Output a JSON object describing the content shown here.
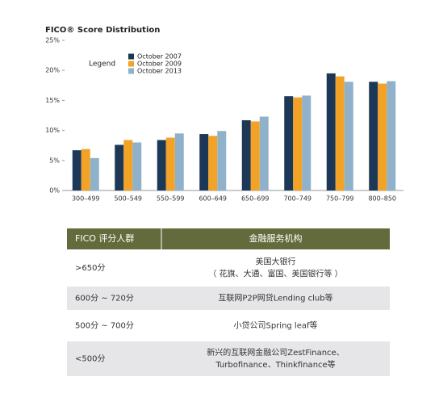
{
  "chart_data": {
    "type": "bar",
    "title": "FICO® Score Distribution",
    "legend_title": "Legend",
    "legend_position": "upper left",
    "categories": [
      "300–499",
      "500–549",
      "550–599",
      "600–649",
      "650–699",
      "700–749",
      "750–799",
      "800–850"
    ],
    "series": [
      {
        "name": "October 2007",
        "color": "#1d3857",
        "values": [
          6.7,
          7.6,
          8.4,
          9.4,
          11.7,
          15.7,
          19.5,
          18.1
        ]
      },
      {
        "name": "October 2009",
        "color": "#f2a227",
        "values": [
          6.9,
          8.4,
          8.8,
          9.1,
          11.5,
          15.5,
          19.0,
          17.8
        ]
      },
      {
        "name": "October 2013",
        "color": "#8fb1c9",
        "values": [
          5.4,
          8.0,
          9.5,
          9.9,
          12.3,
          15.8,
          18.1,
          18.2
        ]
      }
    ],
    "ylim": [
      0,
      25
    ],
    "yticks": [
      {
        "value": 0,
        "label": "0%"
      },
      {
        "value": 5,
        "label": "5%"
      },
      {
        "value": 10,
        "label": "10%"
      },
      {
        "value": 15,
        "label": "15%"
      },
      {
        "value": 20,
        "label": "20%"
      },
      {
        "value": 25,
        "label": "25%"
      }
    ]
  },
  "table": {
    "header": [
      "FICO 评分人群",
      "金融服务机构"
    ],
    "rows": [
      [
        ">650分",
        [
          "美国大银行",
          "（ 花旗、大通、富国、美国银行等 ）"
        ]
      ],
      [
        "600分 ~ 720分",
        [
          "互联网P2P网贷Lending club等"
        ]
      ],
      [
        "500分 ~ 700分",
        [
          "小贷公司Spring leaf等"
        ]
      ],
      [
        "<500分",
        [
          "新兴的互联网金融公司ZestFinance、",
          "Turbofinance、Thinkfinance等"
        ]
      ]
    ]
  }
}
